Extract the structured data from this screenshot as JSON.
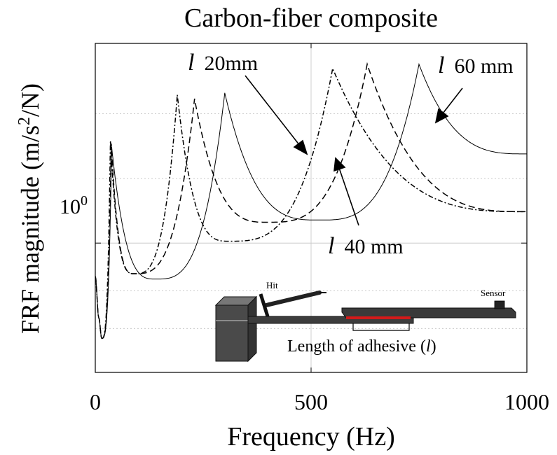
{
  "chart_data": {
    "type": "line",
    "title": "Carbon-fiber composite",
    "xlabel": "Frequency (Hz)",
    "ylabel_main": "FRF magnitude (m/s",
    "ylabel_sup": "2",
    "ylabel_tail": "/N)",
    "xlim": [
      0,
      1000
    ],
    "ylim": [
      0.25,
      8.5
    ],
    "y_scale": "log",
    "x_ticks": [
      0,
      500,
      1000
    ],
    "x_tick_labels": [
      "0",
      "500",
      "1000"
    ],
    "y_tick_base": "10",
    "y_tick_exp": "0",
    "grid": true,
    "series": [
      {
        "name": "l 20mm",
        "style": "dash-dot",
        "peaks": [
          [
            35,
            3.0
          ],
          [
            190,
            4.9
          ],
          [
            550,
            6.5
          ]
        ],
        "mins": [
          [
            15,
            0.36
          ],
          [
            90,
            0.72
          ],
          [
            310,
            1.02
          ]
        ],
        "end_value": 1.4
      },
      {
        "name": "l 40 mm",
        "style": "dashed",
        "peaks": [
          [
            37,
            2.9
          ],
          [
            230,
            4.7
          ],
          [
            630,
            6.8
          ]
        ],
        "mins": [
          [
            15,
            0.36
          ],
          [
            90,
            0.72
          ],
          [
            400,
            1.25
          ]
        ],
        "end_value": 1.4
      },
      {
        "name": "l 60 mm",
        "style": "solid",
        "peaks": [
          [
            38,
            2.8
          ],
          [
            300,
            5.0
          ],
          [
            750,
            6.8
          ]
        ],
        "mins": [
          [
            15,
            0.36
          ],
          [
            140,
            0.68
          ],
          [
            520,
            1.28
          ]
        ],
        "end_value": 2.6
      }
    ],
    "annotations": [
      {
        "italic_symbol": "l",
        "text": "20mm"
      },
      {
        "italic_symbol": "l",
        "text": "40 mm"
      },
      {
        "italic_symbol": "l",
        "text": "60 mm"
      }
    ],
    "inset": {
      "hit_label": "Hit",
      "sensor_label": "Sensor",
      "adhesive_label_prefix": "Length of adhesive (",
      "adhesive_label_symbol": "l",
      "adhesive_label_suffix": ")"
    }
  }
}
